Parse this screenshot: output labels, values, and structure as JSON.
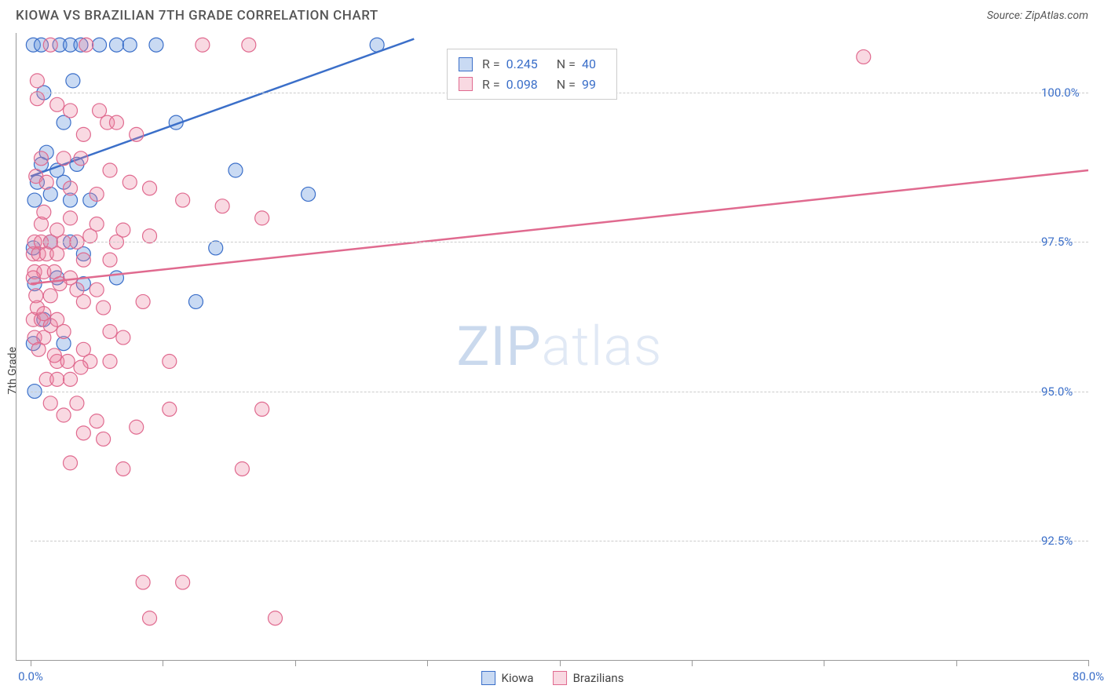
{
  "title": "KIOWA VS BRAZILIAN 7TH GRADE CORRELATION CHART",
  "source": "Source: ZipAtlas.com",
  "watermark_zip": "ZIP",
  "watermark_atlas": "atlas",
  "y_axis_label": "7th Grade",
  "chart": {
    "type": "scatter",
    "xlim": [
      0,
      80
    ],
    "ylim": [
      90.5,
      101
    ],
    "x_ticks": [
      0,
      10,
      20,
      30,
      40,
      50,
      60,
      70,
      80
    ],
    "x_tick_labels": {
      "0": "0.0%",
      "80": "80.0%"
    },
    "y_ticks": [
      92.5,
      95.0,
      97.5,
      100.0
    ],
    "y_tick_labels": [
      "92.5%",
      "95.0%",
      "97.5%",
      "100.0%"
    ],
    "grid_color": "#cccccc",
    "background_color": "#ffffff",
    "series": [
      {
        "name": "Kiowa",
        "stroke": "#3b6fc9",
        "fill": "rgba(100,150,220,0.35)",
        "r_value": "0.245",
        "n_value": "40",
        "trend": {
          "x1": 0,
          "y1": 98.6,
          "x2": 29,
          "y2": 100.9
        },
        "points": [
          [
            0.2,
            100.8
          ],
          [
            2.2,
            100.8
          ],
          [
            3.0,
            100.8
          ],
          [
            3.8,
            100.8
          ],
          [
            6.5,
            100.8
          ],
          [
            9.5,
            100.8
          ],
          [
            26.2,
            100.8
          ],
          [
            1.0,
            100.0
          ],
          [
            3.2,
            100.2
          ],
          [
            11.0,
            99.5
          ],
          [
            1.2,
            99.0
          ],
          [
            0.8,
            98.8
          ],
          [
            2.0,
            98.7
          ],
          [
            3.5,
            98.8
          ],
          [
            15.5,
            98.7
          ],
          [
            0.3,
            98.2
          ],
          [
            1.5,
            98.3
          ],
          [
            3.0,
            98.2
          ],
          [
            4.5,
            98.2
          ],
          [
            21.0,
            98.3
          ],
          [
            0.2,
            97.4
          ],
          [
            4.0,
            97.3
          ],
          [
            14.0,
            97.4
          ],
          [
            0.3,
            96.8
          ],
          [
            2.0,
            96.9
          ],
          [
            6.5,
            96.9
          ],
          [
            12.5,
            96.5
          ],
          [
            0.2,
            95.8
          ],
          [
            2.5,
            95.8
          ],
          [
            0.3,
            95.0
          ],
          [
            0.8,
            100.8
          ],
          [
            5.2,
            100.8
          ],
          [
            7.5,
            100.8
          ],
          [
            2.5,
            99.5
          ],
          [
            4.0,
            96.8
          ],
          [
            1.5,
            97.5
          ],
          [
            3.0,
            97.5
          ],
          [
            0.5,
            98.5
          ],
          [
            2.5,
            98.5
          ],
          [
            1.0,
            96.2
          ]
        ]
      },
      {
        "name": "Brazilians",
        "stroke": "#e06a8f",
        "fill": "rgba(235,130,160,0.3)",
        "r_value": "0.098",
        "n_value": "99",
        "trend": {
          "x1": 0,
          "y1": 96.8,
          "x2": 80,
          "y2": 98.7
        },
        "points": [
          [
            1.5,
            100.8
          ],
          [
            4.2,
            100.8
          ],
          [
            13.0,
            100.8
          ],
          [
            16.5,
            100.8
          ],
          [
            63.0,
            100.6
          ],
          [
            0.5,
            100.2
          ],
          [
            5.2,
            99.7
          ],
          [
            5.8,
            99.5
          ],
          [
            4.0,
            99.3
          ],
          [
            0.8,
            98.9
          ],
          [
            2.5,
            98.9
          ],
          [
            3.8,
            98.9
          ],
          [
            6.0,
            98.7
          ],
          [
            3.0,
            98.4
          ],
          [
            5.0,
            98.3
          ],
          [
            11.5,
            98.2
          ],
          [
            14.5,
            98.1
          ],
          [
            17.5,
            97.9
          ],
          [
            0.3,
            97.5
          ],
          [
            0.8,
            97.5
          ],
          [
            1.5,
            97.5
          ],
          [
            2.5,
            97.5
          ],
          [
            3.5,
            97.5
          ],
          [
            0.2,
            97.3
          ],
          [
            0.6,
            97.3
          ],
          [
            1.2,
            97.3
          ],
          [
            2.0,
            97.3
          ],
          [
            4.0,
            97.2
          ],
          [
            6.0,
            97.2
          ],
          [
            0.3,
            97.0
          ],
          [
            1.0,
            97.0
          ],
          [
            1.8,
            97.0
          ],
          [
            3.0,
            96.9
          ],
          [
            0.4,
            96.6
          ],
          [
            1.5,
            96.6
          ],
          [
            4.0,
            96.5
          ],
          [
            5.5,
            96.4
          ],
          [
            8.5,
            96.5
          ],
          [
            0.2,
            96.2
          ],
          [
            0.8,
            96.2
          ],
          [
            1.5,
            96.1
          ],
          [
            2.5,
            96.0
          ],
          [
            0.3,
            95.9
          ],
          [
            1.0,
            95.9
          ],
          [
            7.0,
            95.9
          ],
          [
            4.0,
            95.7
          ],
          [
            2.0,
            95.5
          ],
          [
            4.5,
            95.5
          ],
          [
            6.0,
            95.5
          ],
          [
            10.5,
            95.5
          ],
          [
            1.2,
            95.2
          ],
          [
            2.0,
            95.2
          ],
          [
            3.0,
            95.2
          ],
          [
            3.5,
            94.8
          ],
          [
            10.5,
            94.7
          ],
          [
            17.5,
            94.7
          ],
          [
            4.0,
            94.3
          ],
          [
            5.5,
            94.2
          ],
          [
            3.0,
            93.8
          ],
          [
            7.0,
            93.7
          ],
          [
            16.0,
            93.7
          ],
          [
            8.5,
            91.8
          ],
          [
            11.5,
            91.8
          ],
          [
            9.0,
            91.2
          ],
          [
            18.5,
            91.2
          ],
          [
            0.5,
            99.9
          ],
          [
            2.0,
            99.8
          ],
          [
            3.0,
            99.7
          ],
          [
            6.5,
            99.5
          ],
          [
            8.0,
            99.3
          ],
          [
            0.4,
            98.6
          ],
          [
            1.2,
            98.5
          ],
          [
            7.5,
            98.5
          ],
          [
            9.0,
            98.4
          ],
          [
            0.2,
            96.9
          ],
          [
            2.2,
            96.8
          ],
          [
            3.5,
            96.7
          ],
          [
            5.0,
            96.7
          ],
          [
            0.6,
            95.7
          ],
          [
            1.8,
            95.6
          ],
          [
            2.8,
            95.5
          ],
          [
            3.8,
            95.4
          ],
          [
            0.8,
            97.8
          ],
          [
            2.0,
            97.7
          ],
          [
            4.5,
            97.6
          ],
          [
            6.5,
            97.5
          ],
          [
            0.5,
            96.4
          ],
          [
            1.0,
            96.3
          ],
          [
            2.0,
            96.2
          ],
          [
            6.0,
            96.0
          ],
          [
            1.5,
            94.8
          ],
          [
            2.5,
            94.6
          ],
          [
            5.0,
            94.5
          ],
          [
            8.0,
            94.4
          ],
          [
            1.0,
            98.0
          ],
          [
            3.0,
            97.9
          ],
          [
            5.0,
            97.8
          ],
          [
            7.0,
            97.7
          ],
          [
            9.0,
            97.6
          ]
        ]
      }
    ]
  },
  "legend_labels": {
    "r": "R =",
    "n": "N ="
  }
}
